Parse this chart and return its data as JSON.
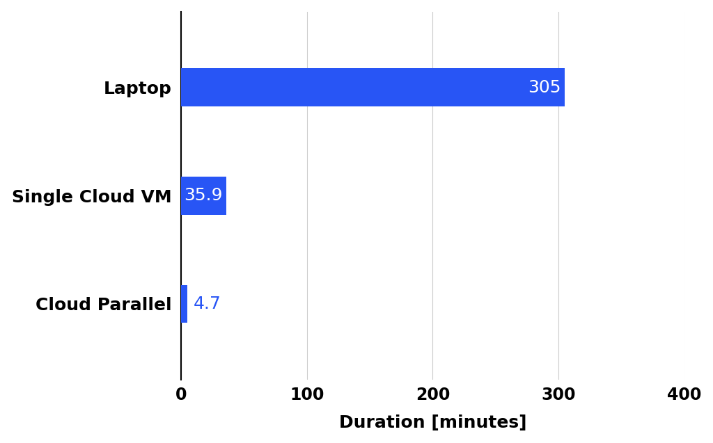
{
  "categories": [
    "Cloud Parallel",
    "Single Cloud VM",
    "Laptop"
  ],
  "values": [
    4.7,
    35.9,
    305
  ],
  "bar_color": "#2855f5",
  "xlabel": "Duration [minutes]",
  "xlim": [
    0,
    400
  ],
  "xticks": [
    0,
    100,
    200,
    300,
    400
  ],
  "bar_labels": [
    "4.7",
    "35.9",
    "305"
  ],
  "label_colors": [
    "#2855f5",
    "white",
    "white"
  ],
  "label_inside": [
    false,
    true,
    true
  ],
  "background_color": "#ffffff",
  "grid_color": "#cccccc",
  "bar_height": 0.35,
  "label_fontsize": 18,
  "tick_fontsize": 17,
  "axis_label_fontsize": 18,
  "ytick_fontsize": 18
}
